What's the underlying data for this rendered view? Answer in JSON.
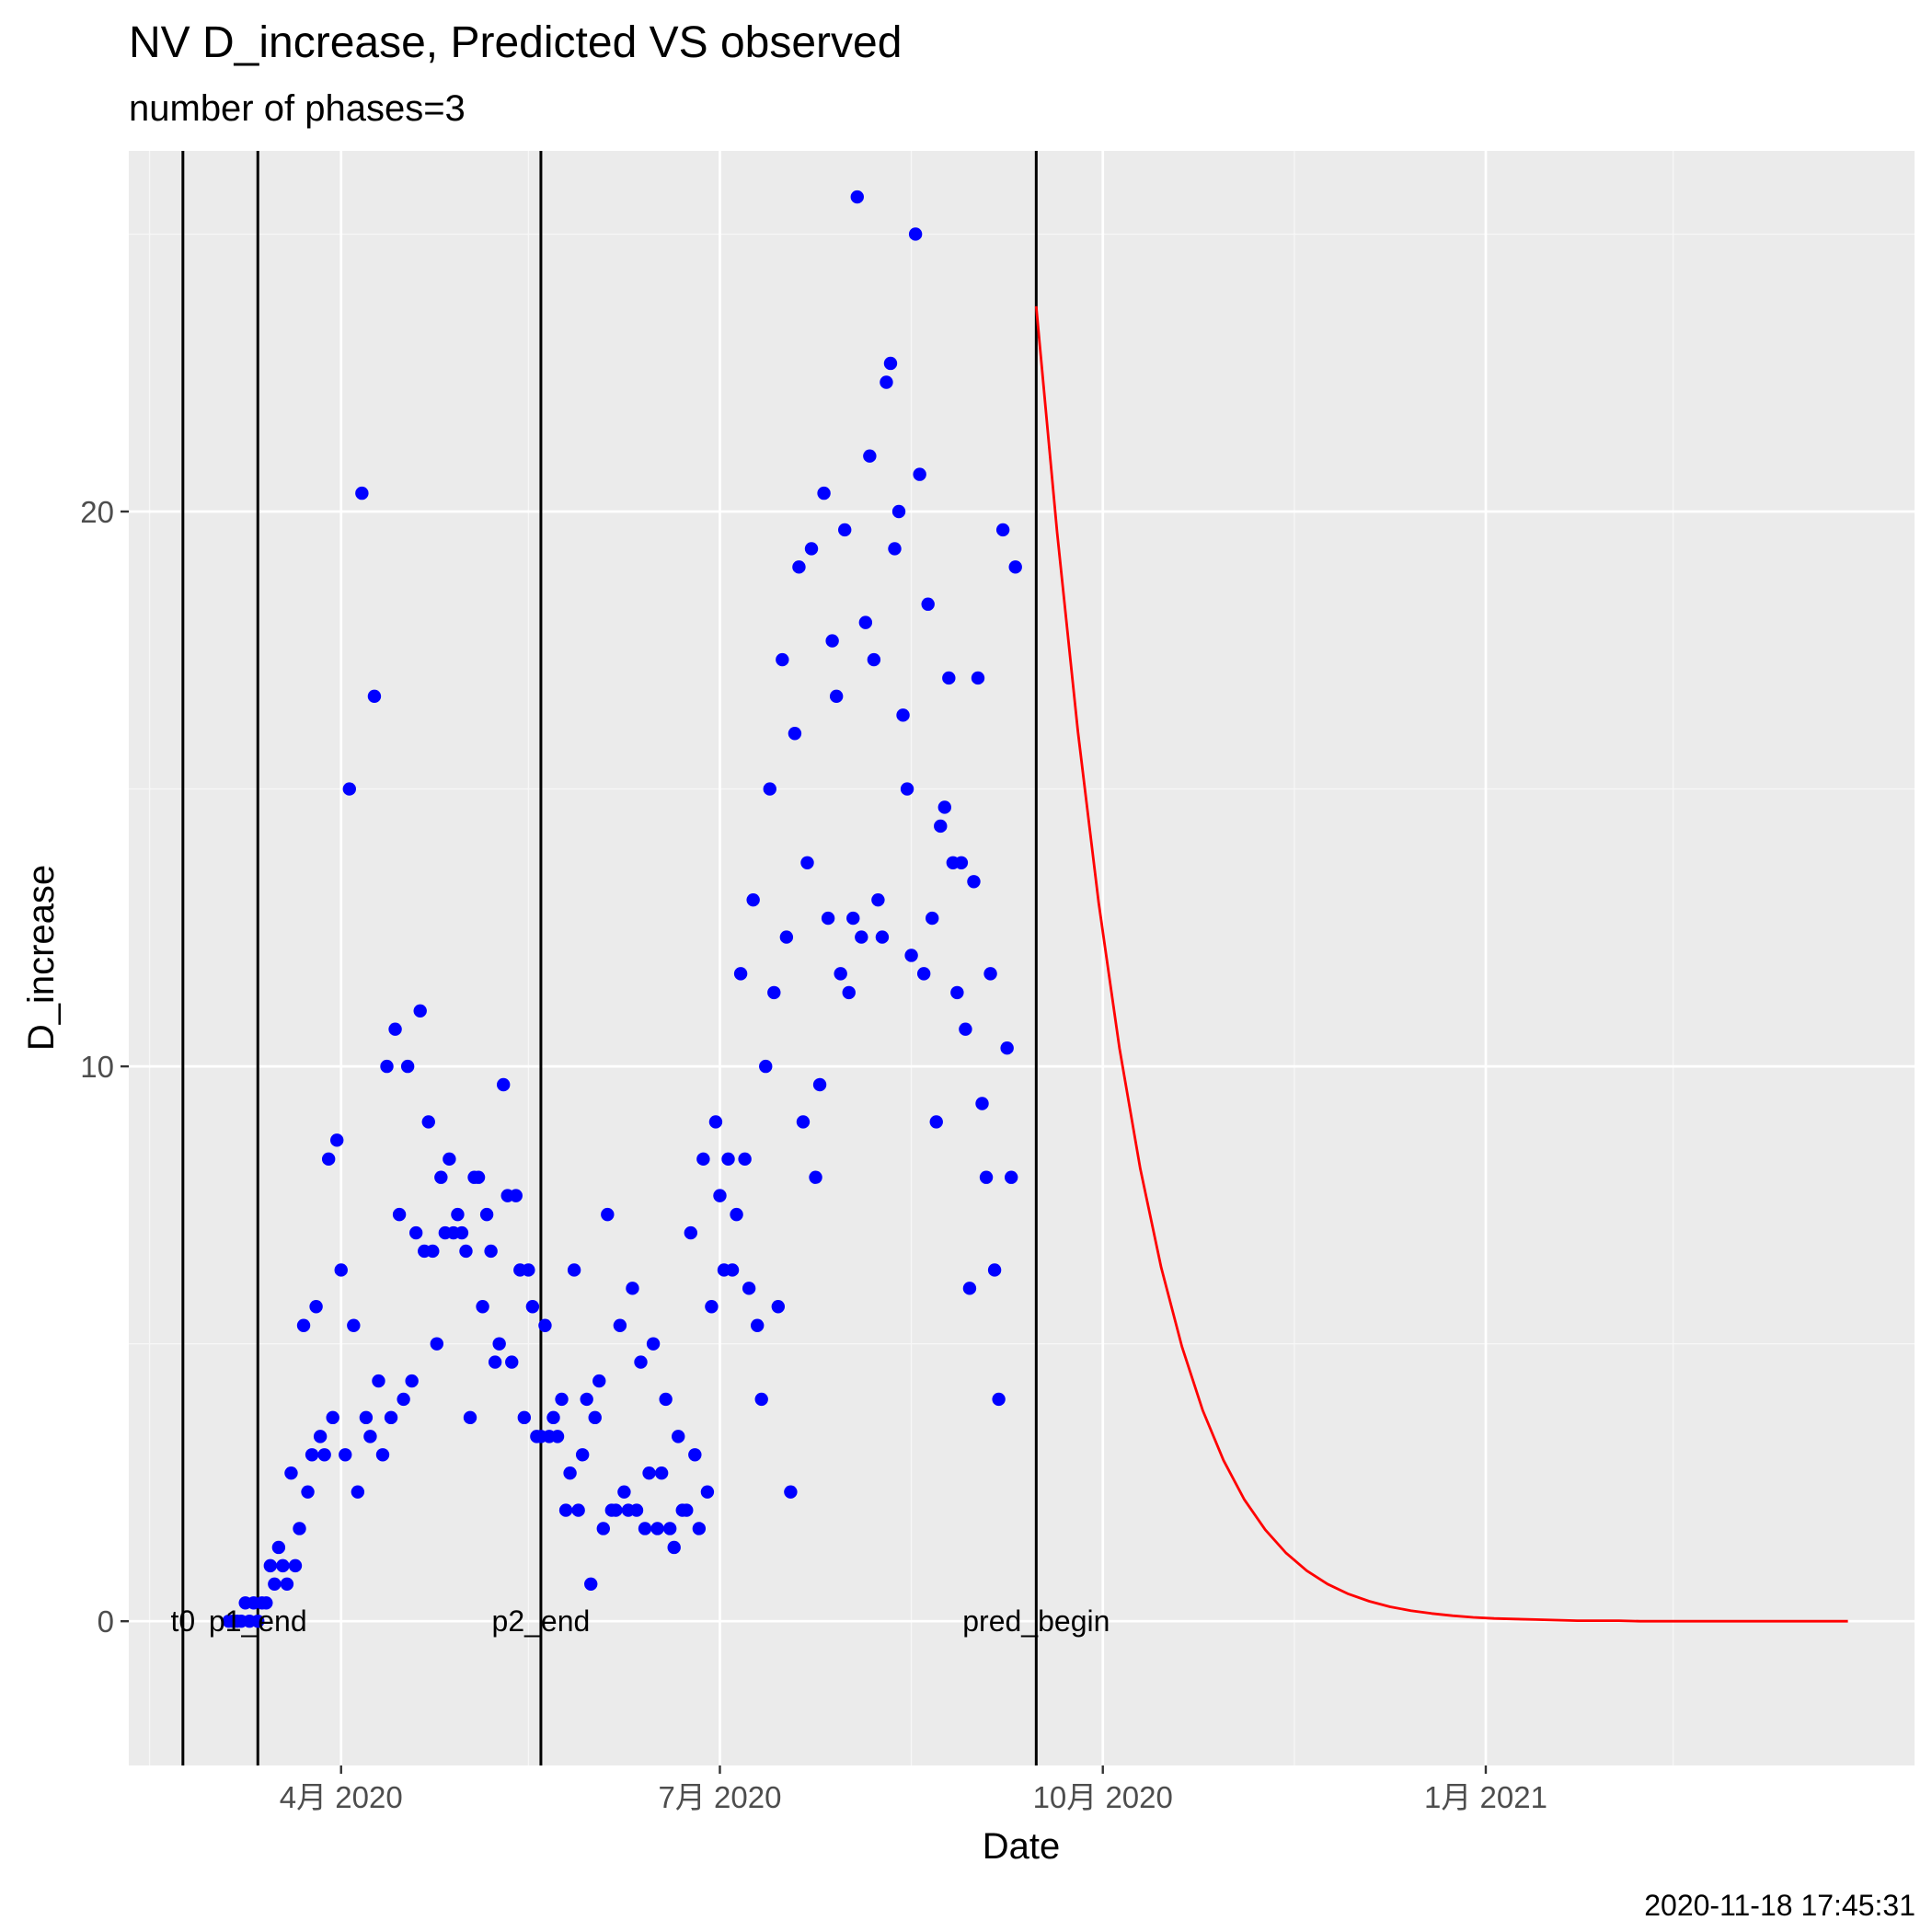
{
  "chart_data": {
    "type": "scatter",
    "title": "NV D_increase, Predicted VS observed",
    "subtitle": "number of phases=3",
    "xlabel": "Date",
    "ylabel": "D_increase",
    "caption": "2020-11-18 17:45:31",
    "x_axis_type": "date",
    "xlim": [
      "2020-02-10",
      "2021-04-14"
    ],
    "ylim": [
      -2.6,
      26.5
    ],
    "x_ticks": [
      {
        "date": "2020-04-01",
        "label": "4月 2020"
      },
      {
        "date": "2020-07-01",
        "label": "7月 2020"
      },
      {
        "date": "2020-10-01",
        "label": "10月 2020"
      },
      {
        "date": "2021-01-01",
        "label": "1月 2021"
      }
    ],
    "x_minor_ticks": [
      "2020-02-15",
      "2020-05-16",
      "2020-08-16",
      "2020-11-16",
      "2021-02-15"
    ],
    "y_ticks": [
      0,
      10,
      20
    ],
    "y_minor_ticks": [
      5,
      15,
      25
    ],
    "grid": true,
    "background": "#ebebeb",
    "vertical_lines": [
      {
        "date": "2020-02-23",
        "label": "t0"
      },
      {
        "date": "2020-03-12",
        "label": "p1_end"
      },
      {
        "date": "2020-05-19",
        "label": "p2_end"
      },
      {
        "date": "2020-09-15",
        "label": "pred_begin"
      }
    ],
    "series": [
      {
        "kind": "observed",
        "mark": "point",
        "color": "#0000ff",
        "points": [
          [
            "2020-03-05",
            0.0
          ],
          [
            "2020-03-06",
            0.0
          ],
          [
            "2020-03-07",
            0.0
          ],
          [
            "2020-03-08",
            0.0
          ],
          [
            "2020-03-09",
            0.33
          ],
          [
            "2020-03-10",
            0.0
          ],
          [
            "2020-03-11",
            0.33
          ],
          [
            "2020-03-12",
            0.0
          ],
          [
            "2020-03-13",
            0.33
          ],
          [
            "2020-03-14",
            0.33
          ],
          [
            "2020-03-15",
            1.0
          ],
          [
            "2020-03-16",
            0.67
          ],
          [
            "2020-03-17",
            1.33
          ],
          [
            "2020-03-18",
            1.0
          ],
          [
            "2020-03-19",
            0.67
          ],
          [
            "2020-03-20",
            2.67
          ],
          [
            "2020-03-21",
            1.0
          ],
          [
            "2020-03-22",
            1.67
          ],
          [
            "2020-03-23",
            5.33
          ],
          [
            "2020-03-24",
            2.33
          ],
          [
            "2020-03-25",
            3.0
          ],
          [
            "2020-03-26",
            5.67
          ],
          [
            "2020-03-27",
            3.33
          ],
          [
            "2020-03-28",
            3.0
          ],
          [
            "2020-03-29",
            8.33
          ],
          [
            "2020-03-30",
            3.67
          ],
          [
            "2020-03-31",
            8.67
          ],
          [
            "2020-04-01",
            6.33
          ],
          [
            "2020-04-02",
            3.0
          ],
          [
            "2020-04-03",
            15.0
          ],
          [
            "2020-04-04",
            5.33
          ],
          [
            "2020-04-05",
            2.33
          ],
          [
            "2020-04-06",
            20.33
          ],
          [
            "2020-04-07",
            3.67
          ],
          [
            "2020-04-08",
            3.33
          ],
          [
            "2020-04-09",
            16.67
          ],
          [
            "2020-04-10",
            4.33
          ],
          [
            "2020-04-11",
            3.0
          ],
          [
            "2020-04-12",
            10.0
          ],
          [
            "2020-04-13",
            3.67
          ],
          [
            "2020-04-14",
            10.67
          ],
          [
            "2020-04-15",
            7.33
          ],
          [
            "2020-04-16",
            4.0
          ],
          [
            "2020-04-17",
            10.0
          ],
          [
            "2020-04-18",
            4.33
          ],
          [
            "2020-04-19",
            7.0
          ],
          [
            "2020-04-20",
            11.0
          ],
          [
            "2020-04-21",
            6.67
          ],
          [
            "2020-04-22",
            9.0
          ],
          [
            "2020-04-23",
            6.67
          ],
          [
            "2020-04-24",
            5.0
          ],
          [
            "2020-04-25",
            8.0
          ],
          [
            "2020-04-26",
            7.0
          ],
          [
            "2020-04-27",
            8.33
          ],
          [
            "2020-04-28",
            7.0
          ],
          [
            "2020-04-29",
            7.33
          ],
          [
            "2020-04-30",
            7.0
          ],
          [
            "2020-05-01",
            6.67
          ],
          [
            "2020-05-02",
            3.67
          ],
          [
            "2020-05-03",
            8.0
          ],
          [
            "2020-05-04",
            8.0
          ],
          [
            "2020-05-05",
            5.67
          ],
          [
            "2020-05-06",
            7.33
          ],
          [
            "2020-05-07",
            6.67
          ],
          [
            "2020-05-08",
            4.67
          ],
          [
            "2020-05-09",
            5.0
          ],
          [
            "2020-05-10",
            9.67
          ],
          [
            "2020-05-11",
            7.67
          ],
          [
            "2020-05-12",
            4.67
          ],
          [
            "2020-05-13",
            7.67
          ],
          [
            "2020-05-14",
            6.33
          ],
          [
            "2020-05-15",
            3.67
          ],
          [
            "2020-05-16",
            6.33
          ],
          [
            "2020-05-17",
            5.67
          ],
          [
            "2020-05-18",
            3.33
          ],
          [
            "2020-05-19",
            3.33
          ],
          [
            "2020-05-20",
            5.33
          ],
          [
            "2020-05-21",
            3.33
          ],
          [
            "2020-05-22",
            3.67
          ],
          [
            "2020-05-23",
            3.33
          ],
          [
            "2020-05-24",
            4.0
          ],
          [
            "2020-05-25",
            2.0
          ],
          [
            "2020-05-26",
            2.67
          ],
          [
            "2020-05-27",
            6.33
          ],
          [
            "2020-05-28",
            2.0
          ],
          [
            "2020-05-29",
            3.0
          ],
          [
            "2020-05-30",
            4.0
          ],
          [
            "2020-05-31",
            0.67
          ],
          [
            "2020-06-01",
            3.67
          ],
          [
            "2020-06-02",
            4.33
          ],
          [
            "2020-06-03",
            1.67
          ],
          [
            "2020-06-04",
            7.33
          ],
          [
            "2020-06-05",
            2.0
          ],
          [
            "2020-06-06",
            2.0
          ],
          [
            "2020-06-07",
            5.33
          ],
          [
            "2020-06-08",
            2.33
          ],
          [
            "2020-06-09",
            2.0
          ],
          [
            "2020-06-10",
            6.0
          ],
          [
            "2020-06-11",
            2.0
          ],
          [
            "2020-06-12",
            4.67
          ],
          [
            "2020-06-13",
            1.67
          ],
          [
            "2020-06-14",
            2.67
          ],
          [
            "2020-06-15",
            5.0
          ],
          [
            "2020-06-16",
            1.67
          ],
          [
            "2020-06-17",
            2.67
          ],
          [
            "2020-06-18",
            4.0
          ],
          [
            "2020-06-19",
            1.67
          ],
          [
            "2020-06-20",
            1.33
          ],
          [
            "2020-06-21",
            3.33
          ],
          [
            "2020-06-22",
            2.0
          ],
          [
            "2020-06-23",
            2.0
          ],
          [
            "2020-06-24",
            7.0
          ],
          [
            "2020-06-25",
            3.0
          ],
          [
            "2020-06-26",
            1.67
          ],
          [
            "2020-06-27",
            8.33
          ],
          [
            "2020-06-28",
            2.33
          ],
          [
            "2020-06-29",
            5.67
          ],
          [
            "2020-06-30",
            9.0
          ],
          [
            "2020-07-01",
            7.67
          ],
          [
            "2020-07-02",
            6.33
          ],
          [
            "2020-07-03",
            8.33
          ],
          [
            "2020-07-04",
            6.33
          ],
          [
            "2020-07-05",
            7.33
          ],
          [
            "2020-07-06",
            11.67
          ],
          [
            "2020-07-07",
            8.33
          ],
          [
            "2020-07-08",
            6.0
          ],
          [
            "2020-07-09",
            13.0
          ],
          [
            "2020-07-10",
            5.33
          ],
          [
            "2020-07-11",
            4.0
          ],
          [
            "2020-07-12",
            10.0
          ],
          [
            "2020-07-13",
            15.0
          ],
          [
            "2020-07-14",
            11.33
          ],
          [
            "2020-07-15",
            5.67
          ],
          [
            "2020-07-16",
            17.33
          ],
          [
            "2020-07-17",
            12.33
          ],
          [
            "2020-07-18",
            2.33
          ],
          [
            "2020-07-19",
            16.0
          ],
          [
            "2020-07-20",
            19.0
          ],
          [
            "2020-07-21",
            9.0
          ],
          [
            "2020-07-22",
            13.67
          ],
          [
            "2020-07-23",
            19.33
          ],
          [
            "2020-07-24",
            8.0
          ],
          [
            "2020-07-25",
            9.67
          ],
          [
            "2020-07-26",
            20.33
          ],
          [
            "2020-07-27",
            12.67
          ],
          [
            "2020-07-28",
            17.67
          ],
          [
            "2020-07-29",
            16.67
          ],
          [
            "2020-07-30",
            11.67
          ],
          [
            "2020-07-31",
            19.67
          ],
          [
            "2020-08-01",
            11.33
          ],
          [
            "2020-08-02",
            12.67
          ],
          [
            "2020-08-03",
            25.67
          ],
          [
            "2020-08-04",
            12.33
          ],
          [
            "2020-08-05",
            18.0
          ],
          [
            "2020-08-06",
            21.0
          ],
          [
            "2020-08-07",
            17.33
          ],
          [
            "2020-08-08",
            13.0
          ],
          [
            "2020-08-09",
            12.33
          ],
          [
            "2020-08-10",
            22.33
          ],
          [
            "2020-08-11",
            22.67
          ],
          [
            "2020-08-12",
            19.33
          ],
          [
            "2020-08-13",
            20.0
          ],
          [
            "2020-08-14",
            16.33
          ],
          [
            "2020-08-15",
            15.0
          ],
          [
            "2020-08-16",
            12.0
          ],
          [
            "2020-08-17",
            25.0
          ],
          [
            "2020-08-18",
            20.67
          ],
          [
            "2020-08-19",
            11.67
          ],
          [
            "2020-08-20",
            18.33
          ],
          [
            "2020-08-21",
            12.67
          ],
          [
            "2020-08-22",
            9.0
          ],
          [
            "2020-08-23",
            14.33
          ],
          [
            "2020-08-24",
            14.67
          ],
          [
            "2020-08-25",
            17.0
          ],
          [
            "2020-08-26",
            13.67
          ],
          [
            "2020-08-27",
            11.33
          ],
          [
            "2020-08-28",
            13.67
          ],
          [
            "2020-08-29",
            10.67
          ],
          [
            "2020-08-30",
            6.0
          ],
          [
            "2020-08-31",
            13.33
          ],
          [
            "2020-09-01",
            17.0
          ],
          [
            "2020-09-02",
            9.33
          ],
          [
            "2020-09-03",
            8.0
          ],
          [
            "2020-09-04",
            11.67
          ],
          [
            "2020-09-05",
            6.33
          ],
          [
            "2020-09-06",
            4.0
          ],
          [
            "2020-09-07",
            19.67
          ],
          [
            "2020-09-08",
            10.33
          ],
          [
            "2020-09-09",
            8.0
          ],
          [
            "2020-09-10",
            19.0
          ]
        ]
      },
      {
        "kind": "predicted",
        "mark": "line",
        "color": "#ff0000",
        "points": [
          [
            "2020-09-15",
            23.7
          ],
          [
            "2020-09-20",
            19.63
          ],
          [
            "2020-09-25",
            16.04
          ],
          [
            "2020-09-30",
            12.95
          ],
          [
            "2020-10-05",
            10.33
          ],
          [
            "2020-10-10",
            8.16
          ],
          [
            "2020-10-15",
            6.38
          ],
          [
            "2020-10-20",
            4.95
          ],
          [
            "2020-10-25",
            3.8
          ],
          [
            "2020-10-30",
            2.9
          ],
          [
            "2020-11-04",
            2.19
          ],
          [
            "2020-11-09",
            1.65
          ],
          [
            "2020-11-14",
            1.23
          ],
          [
            "2020-11-19",
            0.91
          ],
          [
            "2020-11-24",
            0.67
          ],
          [
            "2020-11-29",
            0.49
          ],
          [
            "2020-12-04",
            0.36
          ],
          [
            "2020-12-09",
            0.26
          ],
          [
            "2020-12-14",
            0.19
          ],
          [
            "2020-12-19",
            0.14
          ],
          [
            "2020-12-24",
            0.1
          ],
          [
            "2020-12-29",
            0.07
          ],
          [
            "2021-01-03",
            0.05
          ],
          [
            "2021-01-08",
            0.04
          ],
          [
            "2021-01-13",
            0.03
          ],
          [
            "2021-01-18",
            0.02
          ],
          [
            "2021-01-23",
            0.01
          ],
          [
            "2021-01-28",
            0.01
          ],
          [
            "2021-02-02",
            0.01
          ],
          [
            "2021-02-07",
            0.0
          ],
          [
            "2021-02-12",
            0.0
          ],
          [
            "2021-02-17",
            0.0
          ],
          [
            "2021-02-22",
            0.0
          ],
          [
            "2021-02-27",
            0.0
          ],
          [
            "2021-03-04",
            0.0
          ],
          [
            "2021-03-09",
            0.0
          ],
          [
            "2021-03-14",
            0.0
          ],
          [
            "2021-03-19",
            0.0
          ],
          [
            "2021-03-24",
            0.0
          ],
          [
            "2021-03-29",
            0.0
          ]
        ]
      }
    ]
  }
}
